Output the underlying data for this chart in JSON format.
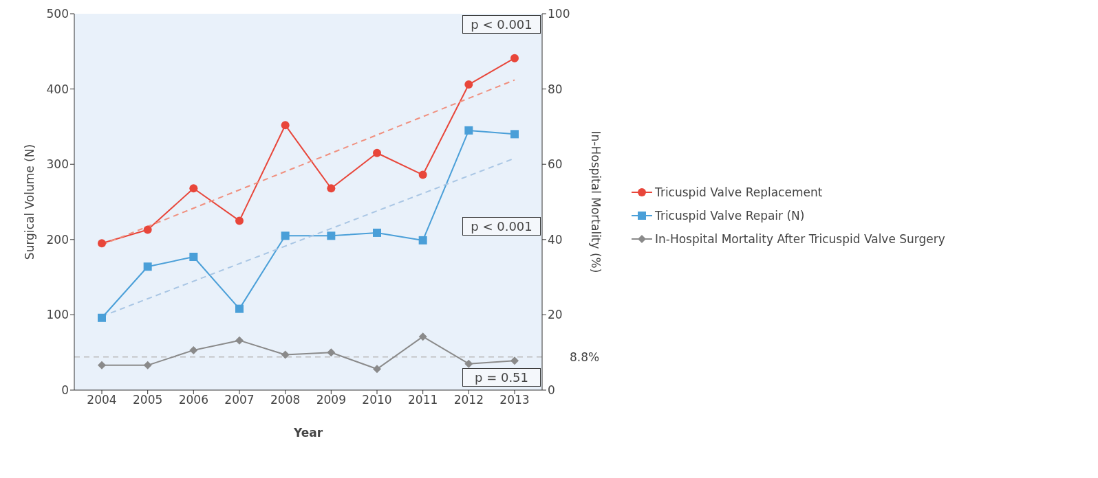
{
  "chart_data": {
    "type": "line",
    "xlabel": "Year",
    "ylabel": "Surgical Volume (N)",
    "y2label": "In-Hospital Mortality (%)",
    "categories": [
      "2004",
      "2005",
      "2006",
      "2007",
      "2008",
      "2009",
      "2010",
      "2011",
      "2012",
      "2013"
    ],
    "series": [
      {
        "name": "Tricuspid Valve Replacement",
        "color": "#e8463a",
        "marker": "circle",
        "values": [
          195,
          213,
          268,
          225,
          352,
          268,
          315,
          286,
          406,
          441
        ]
      },
      {
        "name": "Tricuspid Valve Repair (N)",
        "color": "#4a9fd8",
        "marker": "square",
        "values": [
          96,
          164,
          177,
          108,
          205,
          205,
          209,
          199,
          345,
          340
        ]
      },
      {
        "name": "In-Hospital Mortality After Tricuspid Valve Surgery",
        "color": "#8a8a8a",
        "marker": "diamond",
        "axis": "y2",
        "values": [
          6.6,
          6.6,
          10.6,
          13.2,
          9.4,
          10,
          5.6,
          14.2,
          7,
          7.8
        ]
      },
      {
        "type": "line",
        "color": "#f0907f",
        "line_style": "dashed",
        "marker": "none",
        "values": [
          193,
          null,
          null,
          null,
          null,
          null,
          null,
          null,
          null,
          412
        ]
      },
      {
        "type": "line",
        "color": "#a9c6e4",
        "line_style": "dashed",
        "marker": "none",
        "values": [
          98,
          null,
          null,
          null,
          null,
          null,
          null,
          null,
          null,
          308
        ]
      }
    ],
    "ylim": [
      0,
      500
    ],
    "yticks": [
      0,
      100,
      200,
      300,
      400,
      500
    ],
    "y2lim": [
      0,
      100
    ],
    "y2ticks": [
      0,
      20,
      40,
      60,
      80,
      100
    ],
    "ref_lines": [
      {
        "axis": "y2",
        "value": 8.8,
        "label": "8.8%",
        "color": "#bbbbbb",
        "line_style": "dashed"
      }
    ],
    "annotations": [
      "p < 0.001",
      "p < 0.001",
      "p = 0.51"
    ],
    "legend": "right",
    "grid": false
  }
}
